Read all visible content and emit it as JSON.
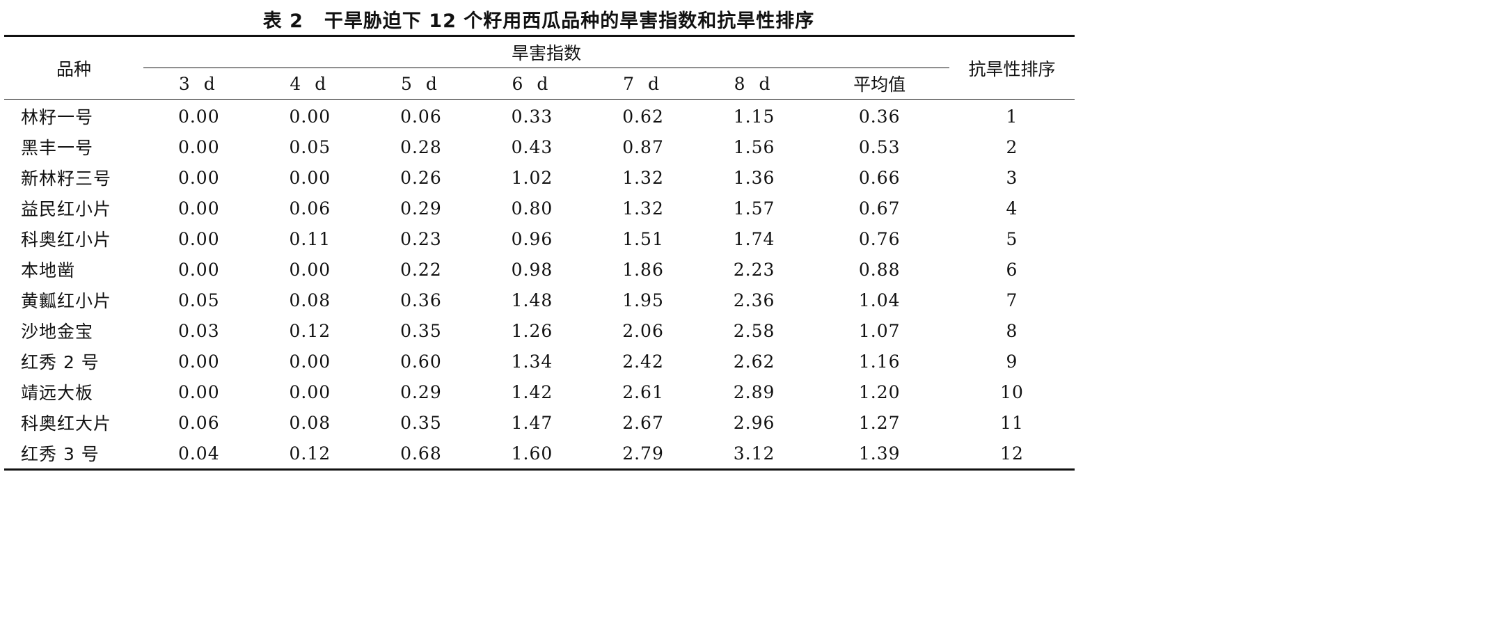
{
  "caption": {
    "number": "表 2",
    "title": "干旱胁迫下 12 个籽用西瓜品种的旱害指数和抗旱性排序"
  },
  "table": {
    "header": {
      "variety": "品种",
      "group": "旱害指数",
      "rank": "抗旱性排序",
      "days": [
        "3 d",
        "4 d",
        "5 d",
        "6 d",
        "7 d",
        "8 d",
        "平均值"
      ]
    },
    "rows": [
      {
        "name": "林籽一号",
        "values": [
          "0.00",
          "0.00",
          "0.06",
          "0.33",
          "0.62",
          "1.15",
          "0.36"
        ],
        "rank": "1"
      },
      {
        "name": "黑丰一号",
        "values": [
          "0.00",
          "0.05",
          "0.28",
          "0.43",
          "0.87",
          "1.56",
          "0.53"
        ],
        "rank": "2"
      },
      {
        "name": "新林籽三号",
        "values": [
          "0.00",
          "0.00",
          "0.26",
          "1.02",
          "1.32",
          "1.36",
          "0.66"
        ],
        "rank": "3"
      },
      {
        "name": "益民红小片",
        "values": [
          "0.00",
          "0.06",
          "0.29",
          "0.80",
          "1.32",
          "1.57",
          "0.67"
        ],
        "rank": "4"
      },
      {
        "name": "科奥红小片",
        "values": [
          "0.00",
          "0.11",
          "0.23",
          "0.96",
          "1.51",
          "1.74",
          "0.76"
        ],
        "rank": "5"
      },
      {
        "name": "本地凿",
        "values": [
          "0.00",
          "0.00",
          "0.22",
          "0.98",
          "1.86",
          "2.23",
          "0.88"
        ],
        "rank": "6"
      },
      {
        "name": "黄瓤红小片",
        "values": [
          "0.05",
          "0.08",
          "0.36",
          "1.48",
          "1.95",
          "2.36",
          "1.04"
        ],
        "rank": "7"
      },
      {
        "name": "沙地金宝",
        "values": [
          "0.03",
          "0.12",
          "0.35",
          "1.26",
          "2.06",
          "2.58",
          "1.07"
        ],
        "rank": "8"
      },
      {
        "name": "红秀 2 号",
        "values": [
          "0.00",
          "0.00",
          "0.60",
          "1.34",
          "2.42",
          "2.62",
          "1.16"
        ],
        "rank": "9"
      },
      {
        "name": "靖远大板",
        "values": [
          "0.00",
          "0.00",
          "0.29",
          "1.42",
          "2.61",
          "2.89",
          "1.20"
        ],
        "rank": "10"
      },
      {
        "name": "科奥红大片",
        "values": [
          "0.06",
          "0.08",
          "0.35",
          "1.47",
          "2.67",
          "2.96",
          "1.27"
        ],
        "rank": "11"
      },
      {
        "name": "红秀 3 号",
        "values": [
          "0.04",
          "0.12",
          "0.68",
          "1.60",
          "2.79",
          "3.12",
          "1.39"
        ],
        "rank": "12"
      }
    ]
  }
}
